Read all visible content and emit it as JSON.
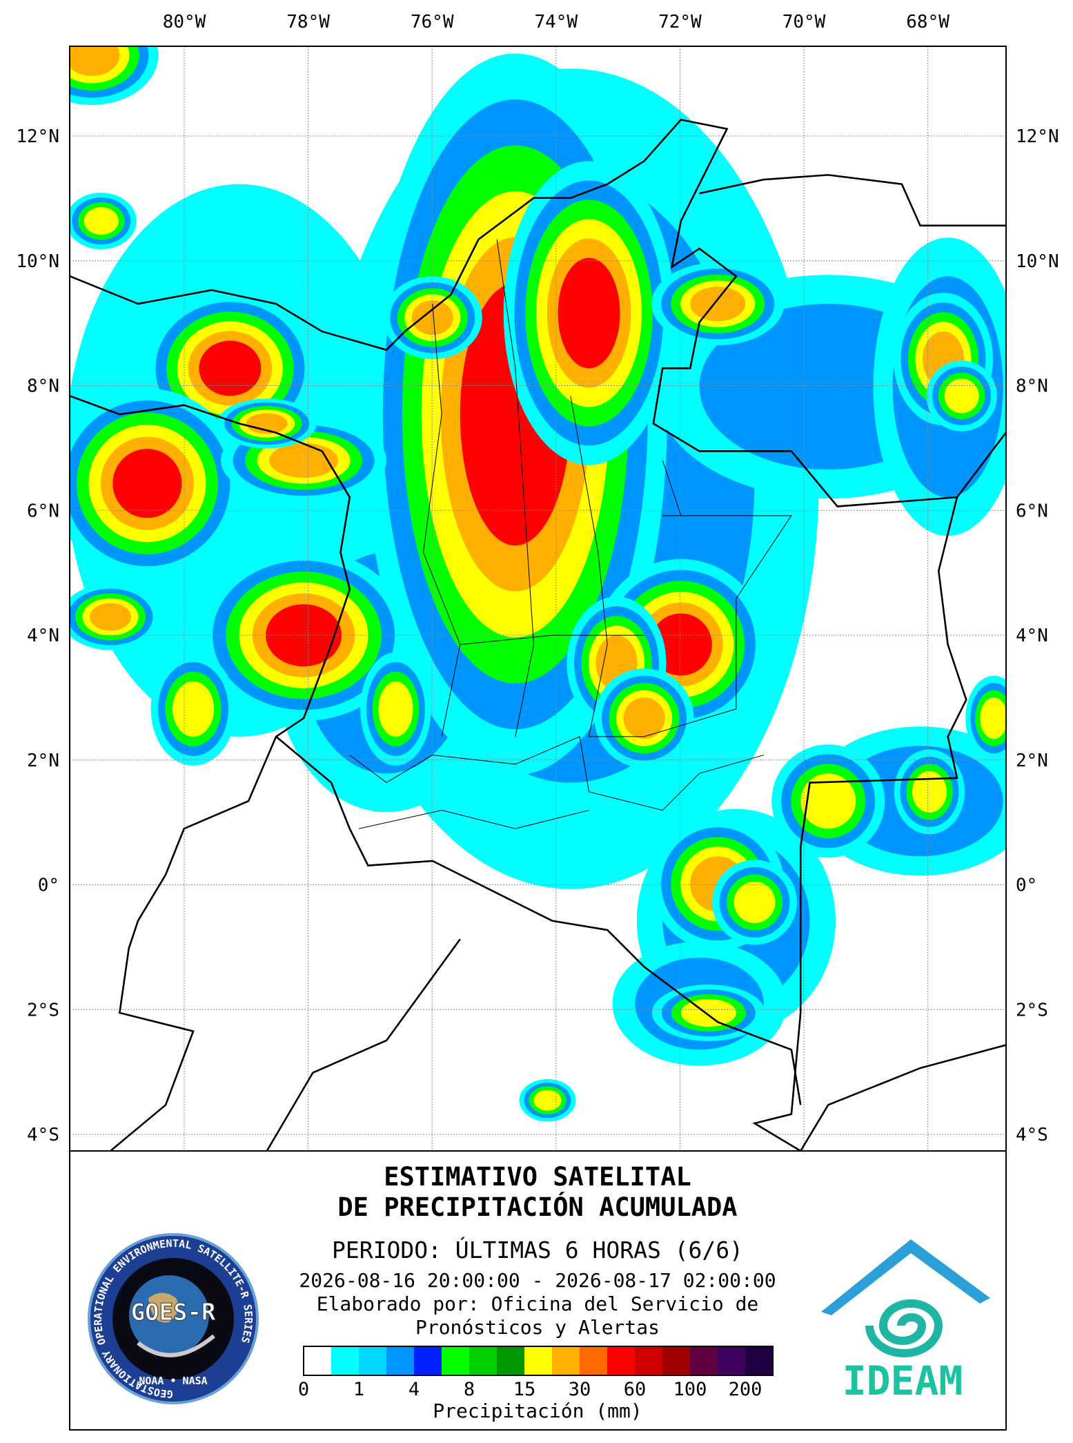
{
  "map": {
    "lon_labels": [
      "80°W",
      "78°W",
      "76°W",
      "74°W",
      "72°W",
      "70°W",
      "68°W"
    ],
    "lat_labels": [
      "12°N",
      "10°N",
      "8°N",
      "6°N",
      "4°N",
      "2°N",
      "0°",
      "2°S",
      "4°S"
    ]
  },
  "panel": {
    "title_line1": "ESTIMATIVO SATELITAL",
    "title_line2": "DE PRECIPITACIÓN ACUMULADA",
    "period": "PERIODO: ÚLTIMAS 6 HORAS (6/6)",
    "date_range": "2026-08-16 20:00:00 - 2026-08-17 02:00:00",
    "credit_line1": "Elaborado por: Oficina del Servicio de",
    "credit_line2": "Pronósticos y Alertas"
  },
  "legend": {
    "colors": [
      "#ffffff",
      "#00ffff",
      "#00d8ff",
      "#0096ff",
      "#0020ff",
      "#00ff00",
      "#00d000",
      "#009600",
      "#ffff00",
      "#ffb000",
      "#ff6a00",
      "#ff0000",
      "#d00000",
      "#a00000",
      "#600040",
      "#400060",
      "#200040"
    ],
    "labels": [
      0,
      1,
      4,
      8,
      15,
      30,
      60,
      100,
      200
    ],
    "title": "Precipitación (mm)"
  },
  "logos": {
    "goes_ring": "GEOSTATIONARY OPERATIONAL ENVIRONMENTAL SATELLITE-R SERIES",
    "goes_name": "GOES-R",
    "goes_agencies": "NOAA • NASA",
    "ideam": "IDEAM"
  }
}
